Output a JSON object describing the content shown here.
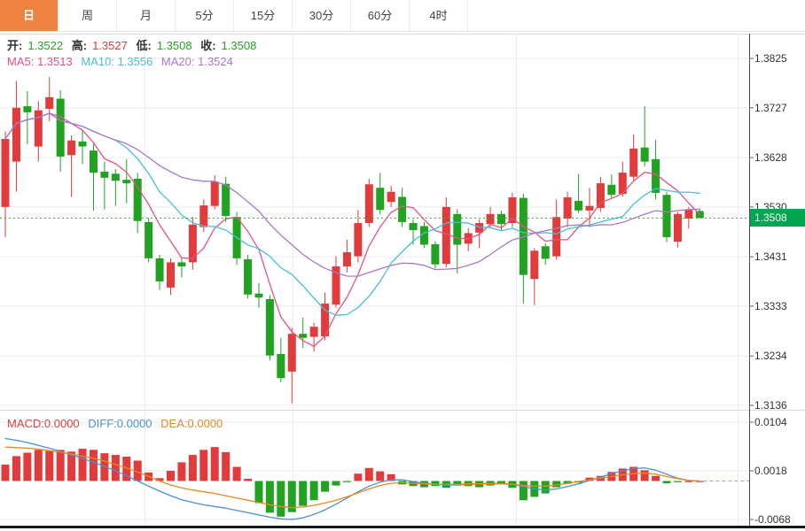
{
  "tabs": [
    {
      "label": "日",
      "active": true
    },
    {
      "label": "周",
      "active": false
    },
    {
      "label": "月",
      "active": false
    },
    {
      "label": "5分",
      "active": false
    },
    {
      "label": "15分",
      "active": false
    },
    {
      "label": "30分",
      "active": false
    },
    {
      "label": "60分",
      "active": false
    },
    {
      "label": "4时",
      "active": false
    }
  ],
  "main_legend": {
    "open_label": "开:",
    "open_value": "1.3522",
    "high_label": "高:",
    "high_value": "1.3527",
    "low_label": "低:",
    "low_value": "1.3508",
    "close_label": "收:",
    "close_value": "1.3508"
  },
  "ma_legend": {
    "ma5": "MA5: 1.3513",
    "ma10": "MA10: 1.3556",
    "ma20": "MA20: 1.3524"
  },
  "macd_legend": {
    "macd": "MACD:0.0000",
    "diff": "DIFF:0.0000",
    "dea": "DEA:0.0000"
  },
  "y_axis_ticks": [
    "1.3825",
    "1.3727",
    "1.3628",
    "1.3530",
    "1.3431",
    "1.3333",
    "1.3234",
    "1.3136"
  ],
  "macd_axis_ticks": [
    "0.0104",
    "0.0018",
    "-0.0068"
  ],
  "last_price_badge": "1.3508",
  "colors": {
    "up": "#e23b3b",
    "down": "#21a321",
    "badge_green": "#00a651",
    "ma5": "#e8527f",
    "ma10": "#45c0d6",
    "ma20": "#a879c8",
    "diff_line": "#4a90d6",
    "dea_line": "#e8891f",
    "dotted_last_price": "#2fae2f",
    "tab_active_bg": "#ee8240",
    "grid": "#ececf1",
    "border": "#d9d9d9",
    "axis_line": "#4a4a4a",
    "bottom_bar": "#1a1a1a",
    "value_green": "#21a321",
    "value_red": "#e23b3b"
  },
  "chart_data": [
    {
      "type": "candlestick",
      "series_name": "day-kline",
      "price_axis_range": [
        1.3136,
        1.3825
      ],
      "last_price": 1.3508,
      "ma_windows": [
        5,
        10,
        20
      ],
      "candles": [
        [
          1.353,
          1.368,
          1.347,
          1.3665
        ],
        [
          1.362,
          1.378,
          1.356,
          1.3727
        ],
        [
          1.373,
          1.376,
          1.3655,
          1.3718
        ],
        [
          1.365,
          1.374,
          1.362,
          1.3722
        ],
        [
          1.3725,
          1.3788,
          1.37,
          1.3748
        ],
        [
          1.3745,
          1.3762,
          1.36,
          1.363
        ],
        [
          1.3633,
          1.3672,
          1.355,
          1.3662
        ],
        [
          1.366,
          1.3682,
          1.3615,
          1.365
        ],
        [
          1.3642,
          1.3655,
          1.3522,
          1.3598
        ],
        [
          1.36,
          1.362,
          1.3525,
          1.3588
        ],
        [
          1.3596,
          1.3605,
          1.3532,
          1.3582
        ],
        [
          1.3584,
          1.3625,
          1.3537,
          1.3577
        ],
        [
          1.3586,
          1.3598,
          1.3478,
          1.3502
        ],
        [
          1.35,
          1.3508,
          1.342,
          1.3428
        ],
        [
          1.3428,
          1.3435,
          1.3365,
          1.3382
        ],
        [
          1.337,
          1.3428,
          1.3355,
          1.342
        ],
        [
          1.342,
          1.343,
          1.339,
          1.3412
        ],
        [
          1.342,
          1.351,
          1.3405,
          1.3495
        ],
        [
          1.349,
          1.3545,
          1.348,
          1.3533
        ],
        [
          1.3532,
          1.3593,
          1.3525,
          1.358
        ],
        [
          1.3576,
          1.359,
          1.35,
          1.3512
        ],
        [
          1.351,
          1.352,
          1.3415,
          1.3428
        ],
        [
          1.3426,
          1.3435,
          1.3348,
          1.3356
        ],
        [
          1.3358,
          1.3379,
          1.333,
          1.335
        ],
        [
          1.3347,
          1.3355,
          1.3225,
          1.3235
        ],
        [
          1.3238,
          1.327,
          1.3182,
          1.319
        ],
        [
          1.3203,
          1.329,
          1.314,
          1.3278
        ],
        [
          1.3278,
          1.331,
          1.325,
          1.327
        ],
        [
          1.3272,
          1.33,
          1.3243,
          1.3292
        ],
        [
          1.3273,
          1.336,
          1.3265,
          1.3338
        ],
        [
          1.3336,
          1.3432,
          1.333,
          1.3412
        ],
        [
          1.3412,
          1.3465,
          1.34,
          1.344
        ],
        [
          1.3432,
          1.3524,
          1.342,
          1.3498
        ],
        [
          1.3498,
          1.3586,
          1.349,
          1.3575
        ],
        [
          1.3568,
          1.3598,
          1.3515,
          1.3524
        ],
        [
          1.354,
          1.3572,
          1.353,
          1.356
        ],
        [
          1.355,
          1.3568,
          1.349,
          1.35
        ],
        [
          1.3498,
          1.3505,
          1.3455,
          1.3484
        ],
        [
          1.3492,
          1.35,
          1.3448,
          1.3455
        ],
        [
          1.3456,
          1.3462,
          1.3408,
          1.3416
        ],
        [
          1.3417,
          1.3549,
          1.341,
          1.353
        ],
        [
          1.3516,
          1.3525,
          1.3398,
          1.3455
        ],
        [
          1.3457,
          1.3488,
          1.3442,
          1.3478
        ],
        [
          1.3479,
          1.3505,
          1.3448,
          1.3498
        ],
        [
          1.3496,
          1.353,
          1.3488,
          1.3516
        ],
        [
          1.3516,
          1.3522,
          1.3484,
          1.3496
        ],
        [
          1.3498,
          1.3558,
          1.349,
          1.3549
        ],
        [
          1.3548,
          1.3556,
          1.3338,
          1.3395
        ],
        [
          1.3387,
          1.3448,
          1.3335,
          1.3443
        ],
        [
          1.3452,
          1.3458,
          1.3415,
          1.3427
        ],
        [
          1.3432,
          1.3545,
          1.3425,
          1.351
        ],
        [
          1.3507,
          1.356,
          1.349,
          1.3549
        ],
        [
          1.3542,
          1.3595,
          1.3518,
          1.3523
        ],
        [
          1.3523,
          1.3568,
          1.349,
          1.3532
        ],
        [
          1.3528,
          1.359,
          1.352,
          1.3577
        ],
        [
          1.3574,
          1.3595,
          1.3548,
          1.3554
        ],
        [
          1.3556,
          1.362,
          1.355,
          1.3598
        ],
        [
          1.359,
          1.3674,
          1.3582,
          1.3646
        ],
        [
          1.3648,
          1.373,
          1.361,
          1.362
        ],
        [
          1.3625,
          1.3663,
          1.3545,
          1.3558
        ],
        [
          1.3554,
          1.356,
          1.346,
          1.347
        ],
        [
          1.3461,
          1.352,
          1.3449,
          1.3516
        ],
        [
          1.3507,
          1.353,
          1.3487,
          1.3524
        ],
        [
          1.3522,
          1.3527,
          1.3508,
          1.3508
        ]
      ]
    },
    {
      "type": "bar",
      "series_name": "MACD",
      "value_axis_range": [
        -0.0068,
        0.0104
      ],
      "bars": [
        0.0029,
        0.0044,
        0.005,
        0.0055,
        0.0053,
        0.0055,
        0.0052,
        0.0057,
        0.0055,
        0.0049,
        0.0046,
        0.0043,
        0.0036,
        0.0015,
        0.0005,
        0.0018,
        0.0033,
        0.0046,
        0.0055,
        0.006,
        0.0051,
        0.0025,
        0.0004,
        -0.0039,
        -0.0056,
        -0.0063,
        -0.0055,
        -0.0044,
        -0.0034,
        -0.0019,
        -0.0008,
        -0.0002,
        0.0013,
        0.0023,
        0.0017,
        0.0012,
        -0.0006,
        -0.0009,
        -0.0011,
        -0.0009,
        -0.0012,
        -0.0008,
        -0.0009,
        -0.0011,
        -0.0008,
        -0.0006,
        -0.0012,
        -0.0034,
        -0.0028,
        -0.0022,
        -0.0011,
        -0.0005,
        -0.0003,
        0.0006,
        0.0009,
        0.0016,
        0.0022,
        0.0025,
        0.0019,
        0.0009,
        -0.0004,
        -0.0002,
        0.0,
        0.0
      ],
      "diff": [
        0.0075,
        0.0072,
        0.0068,
        0.0063,
        0.0058,
        0.0052,
        0.0046,
        0.004,
        0.0033,
        0.0026,
        0.0018,
        0.0009,
        0.0,
        -0.0009,
        -0.0018,
        -0.0026,
        -0.0033,
        -0.0038,
        -0.0042,
        -0.0045,
        -0.0048,
        -0.0052,
        -0.0056,
        -0.006,
        -0.0064,
        -0.0067,
        -0.0068,
        -0.0065,
        -0.0059,
        -0.0051,
        -0.0041,
        -0.003,
        -0.0019,
        -0.0009,
        -0.0002,
        0.0002,
        0.0002,
        -0.0001,
        -0.0004,
        -0.0006,
        -0.0007,
        -0.0007,
        -0.0006,
        -0.0005,
        -0.0004,
        -0.0004,
        -0.0006,
        -0.001,
        -0.0014,
        -0.0016,
        -0.0014,
        -0.001,
        -0.0005,
        0.0001,
        0.0007,
        0.0013,
        0.0018,
        0.0022,
        0.0023,
        0.0019,
        0.0012,
        0.0005,
        0.0001,
        0.0
      ],
      "dea": [
        0.006,
        0.0059,
        0.0058,
        0.0056,
        0.0054,
        0.0051,
        0.0048,
        0.0044,
        0.004,
        0.0035,
        0.0029,
        0.0023,
        0.0016,
        0.0008,
        0.0,
        -0.0007,
        -0.0012,
        -0.0016,
        -0.0019,
        -0.0022,
        -0.0026,
        -0.003,
        -0.0034,
        -0.0038,
        -0.0042,
        -0.0045,
        -0.0047,
        -0.0046,
        -0.0043,
        -0.0039,
        -0.0034,
        -0.0028,
        -0.0021,
        -0.0014,
        -0.0008,
        -0.0004,
        -0.0003,
        -0.0004,
        -0.0005,
        -0.0006,
        -0.0006,
        -0.0006,
        -0.0005,
        -0.0005,
        -0.0005,
        -0.0005,
        -0.0006,
        -0.0008,
        -0.0009,
        -0.0009,
        -0.0007,
        -0.0004,
        -0.0001,
        0.0002,
        0.0005,
        0.0008,
        0.0011,
        0.0013,
        0.0014,
        0.0012,
        0.0008,
        0.0004,
        0.0001,
        0.0
      ]
    }
  ]
}
